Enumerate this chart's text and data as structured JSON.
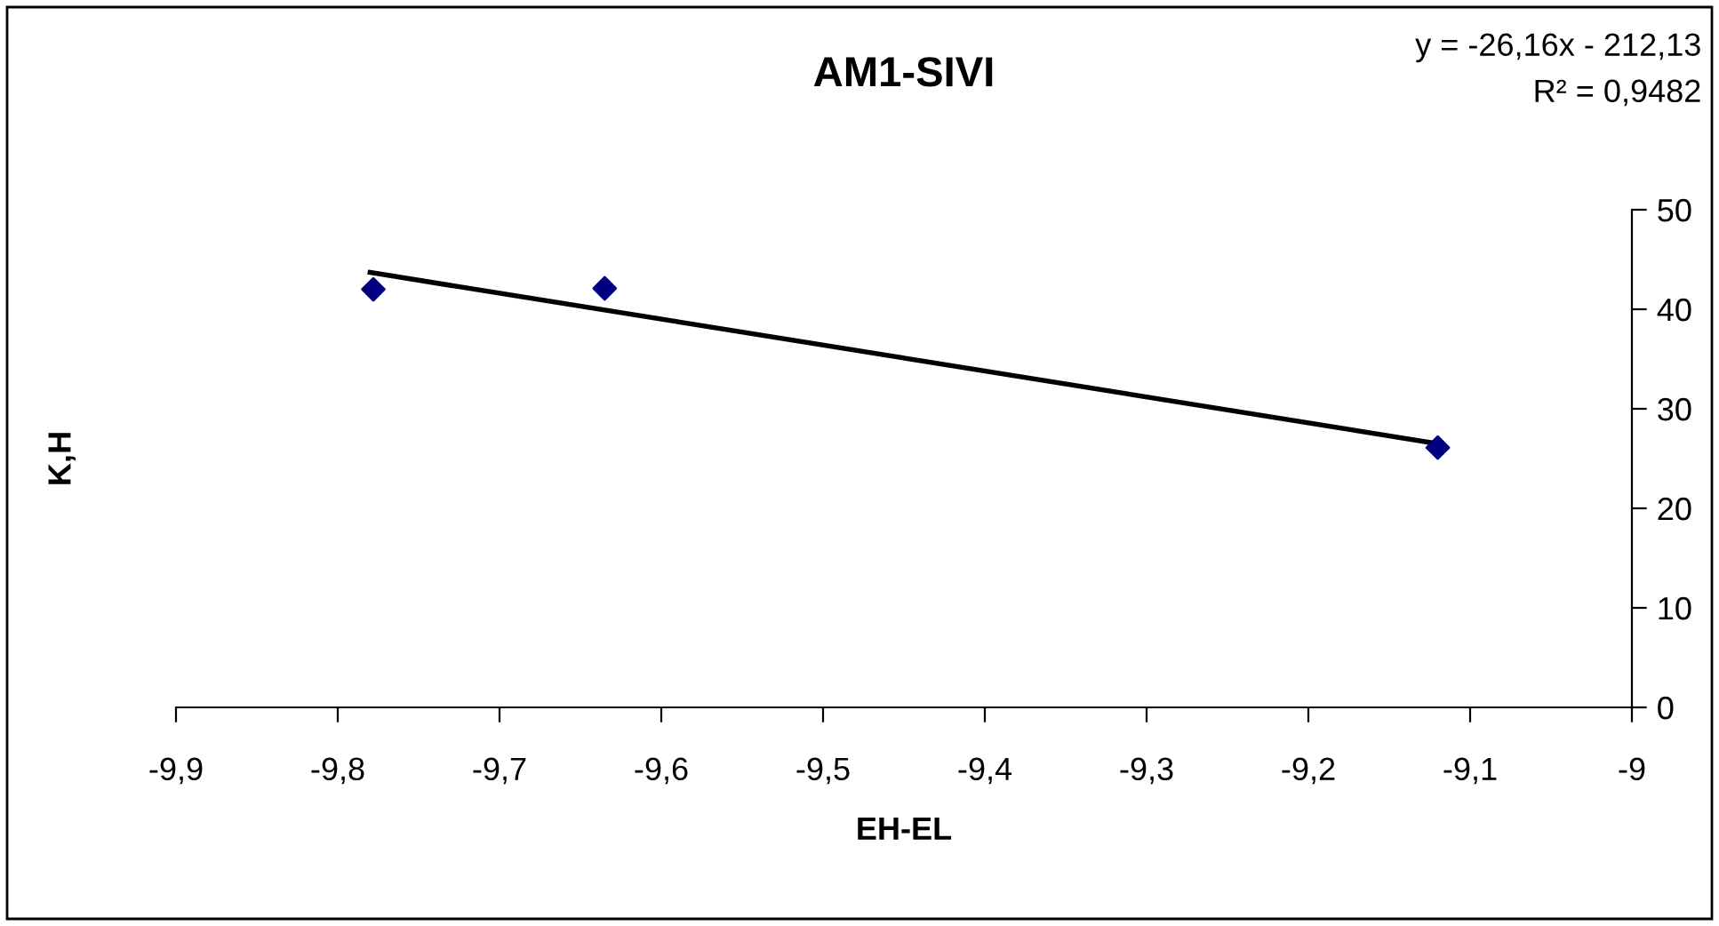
{
  "chart_data": {
    "type": "scatter",
    "title": "AM1-SIVI",
    "xlabel": "EH-EL",
    "ylabel": "K,H",
    "series": [
      {
        "color": "#000080",
        "marker": "diamond",
        "x": [
          -9.778,
          -9.635,
          -9.12
        ],
        "values": [
          42.0,
          42.1,
          26.1
        ]
      },
      {
        "type": "line",
        "marker": "none",
        "color": "#000000",
        "x": [
          -9.78,
          -9.12
        ],
        "values": [
          43.7,
          26.5
        ]
      }
    ],
    "grid": false,
    "legend": false,
    "xlim": [
      -9.9,
      -9
    ],
    "xticks": [
      {
        "value": -9.9,
        "label": "-9,9"
      },
      {
        "value": -9.8,
        "label": "-9,8"
      },
      {
        "value": -9.7,
        "label": "-9,7"
      },
      {
        "value": -9.6,
        "label": "-9,6"
      },
      {
        "value": -9.5,
        "label": "-9,5"
      },
      {
        "value": -9.4,
        "label": "-9,4"
      },
      {
        "value": -9.3,
        "label": "-9,3"
      },
      {
        "value": -9.2,
        "label": "-9,2"
      },
      {
        "value": -9.1,
        "label": "-9,1"
      },
      -9
    ],
    "ylim": [
      0,
      50
    ],
    "yticks": [
      0,
      10,
      20,
      30,
      40,
      50
    ],
    "annotations": [
      "y = -26,16x - 212,13",
      "R² = 0,9482"
    ]
  }
}
